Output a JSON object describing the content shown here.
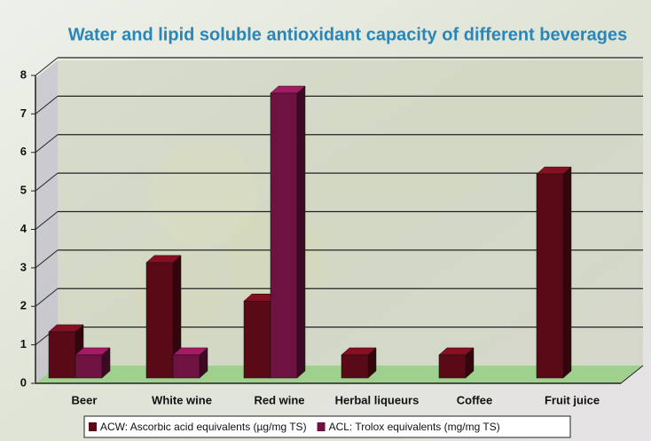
{
  "chart_data": {
    "type": "bar3d",
    "title": "Water and lipid soluble antioxidant capacity of different beverages",
    "categories": [
      "Beer",
      "White wine",
      "Red wine",
      "Herbal liqueurs",
      "Coffee",
      "Fruit juice"
    ],
    "series": [
      {
        "name": "ACW: Ascorbic acid equivalents (µg/mg TS)",
        "color": "#5a0a16",
        "values": [
          1.2,
          3.0,
          2.0,
          0.6,
          0.6,
          5.3
        ]
      },
      {
        "name": "ACL: Trolox equivalents (mg/mg TS)",
        "color": "#6e1242",
        "values": [
          0.6,
          0.6,
          7.4,
          null,
          null,
          null
        ]
      }
    ],
    "ylim": [
      0,
      8
    ],
    "yticks": [
      0,
      1,
      2,
      3,
      4,
      5,
      6,
      7,
      8
    ],
    "grid": true
  }
}
